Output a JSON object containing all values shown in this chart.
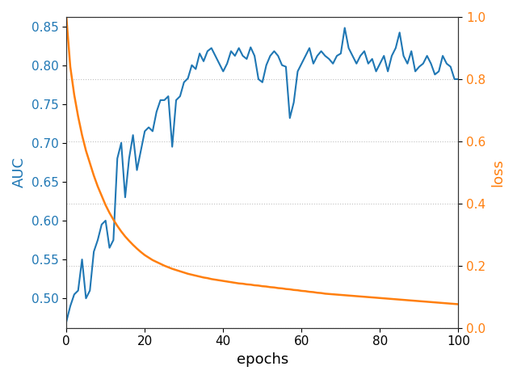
{
  "epochs": [
    0,
    1,
    2,
    3,
    4,
    5,
    6,
    7,
    8,
    9,
    10,
    11,
    12,
    13,
    14,
    15,
    16,
    17,
    18,
    19,
    20,
    21,
    22,
    23,
    24,
    25,
    26,
    27,
    28,
    29,
    30,
    31,
    32,
    33,
    34,
    35,
    36,
    37,
    38,
    39,
    40,
    41,
    42,
    43,
    44,
    45,
    46,
    47,
    48,
    49,
    50,
    51,
    52,
    53,
    54,
    55,
    56,
    57,
    58,
    59,
    60,
    61,
    62,
    63,
    64,
    65,
    66,
    67,
    68,
    69,
    70,
    71,
    72,
    73,
    74,
    75,
    76,
    77,
    78,
    79,
    80,
    81,
    82,
    83,
    84,
    85,
    86,
    87,
    88,
    89,
    90,
    91,
    92,
    93,
    94,
    95,
    96,
    97,
    98,
    99,
    100
  ],
  "auc": [
    0.47,
    0.49,
    0.505,
    0.51,
    0.55,
    0.5,
    0.51,
    0.56,
    0.575,
    0.595,
    0.6,
    0.565,
    0.575,
    0.68,
    0.7,
    0.63,
    0.68,
    0.71,
    0.665,
    0.69,
    0.715,
    0.72,
    0.715,
    0.74,
    0.755,
    0.755,
    0.76,
    0.695,
    0.755,
    0.76,
    0.778,
    0.783,
    0.8,
    0.795,
    0.815,
    0.805,
    0.818,
    0.822,
    0.812,
    0.802,
    0.792,
    0.802,
    0.818,
    0.812,
    0.822,
    0.812,
    0.808,
    0.823,
    0.812,
    0.782,
    0.778,
    0.8,
    0.812,
    0.818,
    0.812,
    0.8,
    0.798,
    0.732,
    0.752,
    0.792,
    0.802,
    0.812,
    0.822,
    0.802,
    0.812,
    0.818,
    0.812,
    0.808,
    0.802,
    0.812,
    0.815,
    0.848,
    0.822,
    0.812,
    0.802,
    0.812,
    0.818,
    0.802,
    0.808,
    0.792,
    0.802,
    0.812,
    0.792,
    0.812,
    0.822,
    0.842,
    0.812,
    0.802,
    0.818,
    0.792,
    0.798,
    0.802,
    0.812,
    0.802,
    0.788,
    0.792,
    0.812,
    0.802,
    0.798,
    0.782,
    0.782
  ],
  "loss": [
    1.0,
    0.84,
    0.75,
    0.68,
    0.62,
    0.57,
    0.53,
    0.49,
    0.455,
    0.425,
    0.395,
    0.37,
    0.348,
    0.328,
    0.31,
    0.294,
    0.28,
    0.267,
    0.255,
    0.244,
    0.234,
    0.226,
    0.218,
    0.212,
    0.206,
    0.2,
    0.195,
    0.19,
    0.186,
    0.182,
    0.178,
    0.174,
    0.171,
    0.168,
    0.165,
    0.162,
    0.16,
    0.157,
    0.155,
    0.153,
    0.151,
    0.149,
    0.147,
    0.145,
    0.143,
    0.142,
    0.14,
    0.139,
    0.137,
    0.136,
    0.134,
    0.133,
    0.131,
    0.13,
    0.128,
    0.127,
    0.125,
    0.124,
    0.122,
    0.121,
    0.119,
    0.118,
    0.116,
    0.115,
    0.113,
    0.112,
    0.11,
    0.109,
    0.108,
    0.107,
    0.106,
    0.105,
    0.104,
    0.103,
    0.102,
    0.101,
    0.1,
    0.099,
    0.098,
    0.097,
    0.096,
    0.095,
    0.094,
    0.093,
    0.092,
    0.091,
    0.09,
    0.089,
    0.088,
    0.087,
    0.086,
    0.085,
    0.084,
    0.083,
    0.082,
    0.081,
    0.08,
    0.079,
    0.078,
    0.077,
    0.076
  ],
  "auc_color": "#1f77b4",
  "loss_color": "#ff7f0e",
  "xlabel": "epochs",
  "ylabel_left": "AUC",
  "ylabel_right": "loss",
  "ylim_left": [
    0.462,
    0.862
  ],
  "ylim_right": [
    0.0,
    1.0
  ],
  "xlim": [
    0,
    100
  ],
  "grid_color": "#c0c0c0",
  "figsize": [
    6.4,
    4.69
  ],
  "dpi": 100,
  "left_yticks": [
    0.5,
    0.55,
    0.6,
    0.65,
    0.7,
    0.75,
    0.8,
    0.85
  ],
  "right_yticks": [
    0.0,
    0.2,
    0.4,
    0.6,
    0.8,
    1.0
  ],
  "xticks": [
    0,
    20,
    40,
    60,
    80,
    100
  ]
}
